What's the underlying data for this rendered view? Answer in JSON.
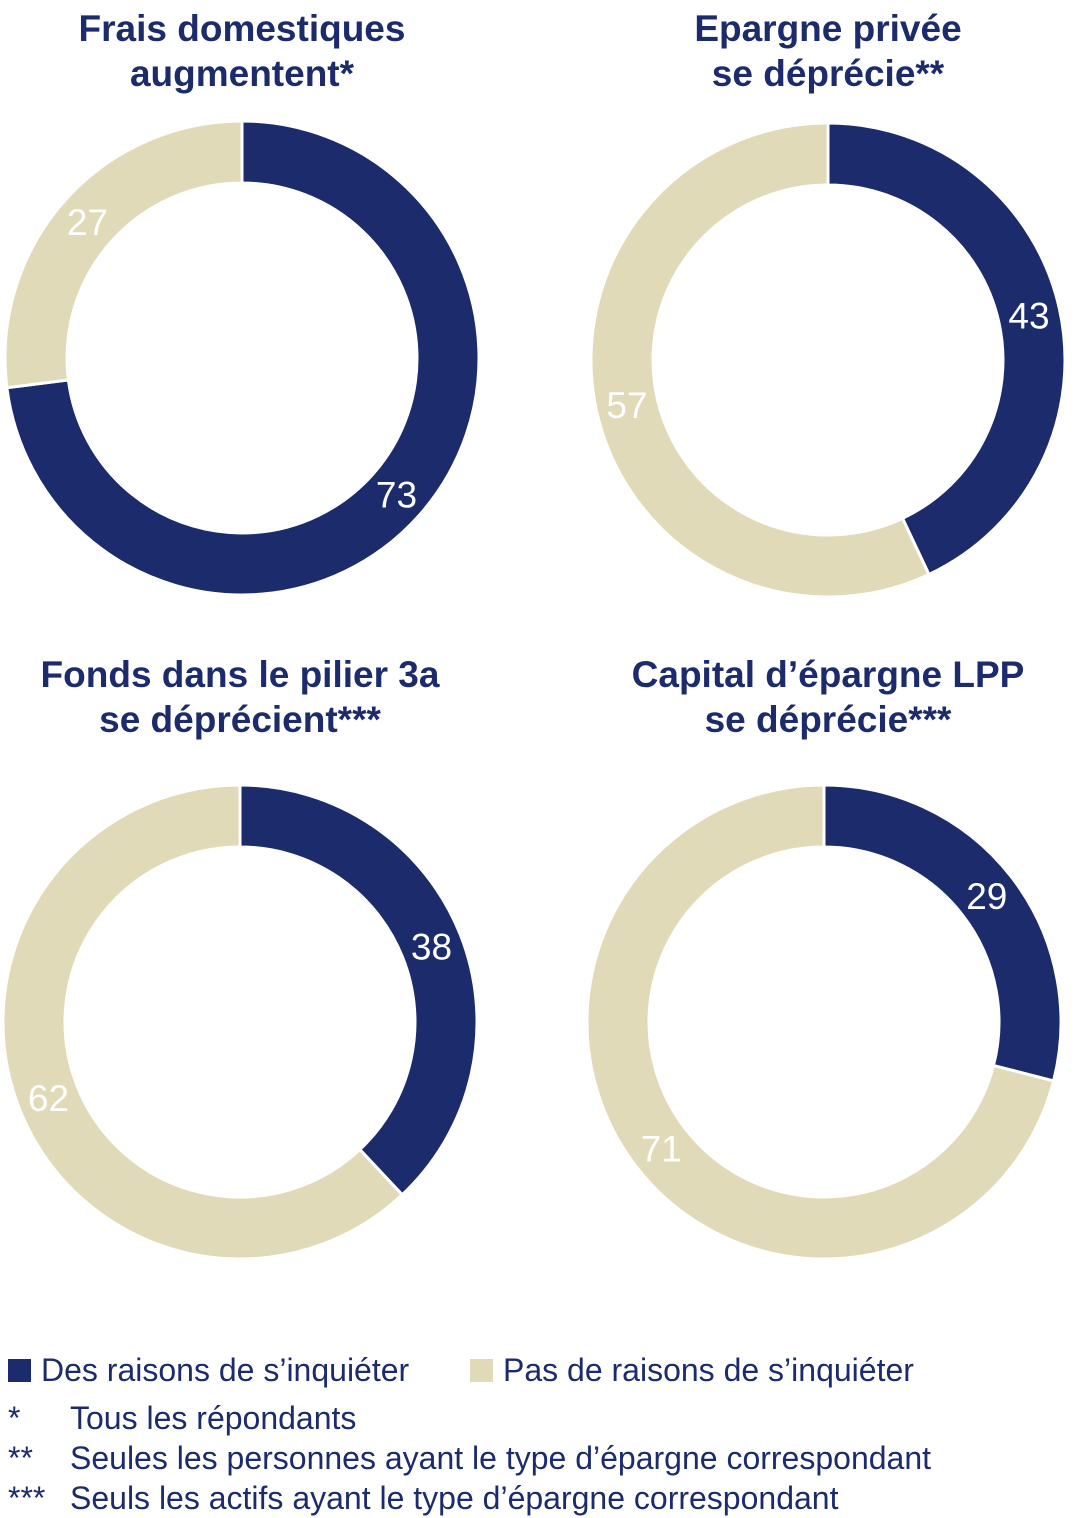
{
  "colors": {
    "navy": "#1B2B6B",
    "beige": "#E0DAB8",
    "slice_label": "#ffffff",
    "text": "#1B2B6B",
    "background": "#ffffff"
  },
  "chart_data": [
    {
      "type": "pie",
      "subtype": "donut",
      "title": "Frais domestiques augmentent*",
      "title_lines": [
        "Frais domestiques",
        "augmentent*"
      ],
      "labels": [
        "Des raisons de s’inquiéter",
        "Pas de raisons de s’inquiéter"
      ],
      "values": [
        73,
        27
      ],
      "colors": [
        "#1B2B6B",
        "#E0DAB8"
      ],
      "start_angle_deg": 0,
      "direction": "clockwise",
      "data_labels": "white numbers at slice mid-angle"
    },
    {
      "type": "pie",
      "subtype": "donut",
      "title": "Epargne privée se déprécie**",
      "title_lines": [
        "Epargne privée",
        "se déprécie**"
      ],
      "labels": [
        "Des raisons de s’inquiéter",
        "Pas de raisons de s’inquiéter"
      ],
      "values": [
        43,
        57
      ],
      "colors": [
        "#1B2B6B",
        "#E0DAB8"
      ],
      "start_angle_deg": 0,
      "direction": "clockwise",
      "data_labels": "white numbers at slice mid-angle"
    },
    {
      "type": "pie",
      "subtype": "donut",
      "title": "Fonds dans le pilier 3a se déprécient***",
      "title_lines": [
        "Fonds dans le pilier 3a",
        "se déprécient***"
      ],
      "labels": [
        "Des raisons de s’inquiéter",
        "Pas de raisons de s’inquiéter"
      ],
      "values": [
        38,
        62
      ],
      "colors": [
        "#1B2B6B",
        "#E0DAB8"
      ],
      "start_angle_deg": 0,
      "direction": "clockwise",
      "data_labels": "white numbers at slice mid-angle"
    },
    {
      "type": "pie",
      "subtype": "donut",
      "title": "Capital d’épargne LPP se déprécie***",
      "title_lines": [
        "Capital d’épargne LPP",
        "se déprécie***"
      ],
      "labels": [
        "Des raisons de s’inquiéter",
        "Pas de raisons de s’inquiéter"
      ],
      "values": [
        29,
        71
      ],
      "colors": [
        "#1B2B6B",
        "#E0DAB8"
      ],
      "start_angle_deg": 0,
      "direction": "clockwise",
      "data_labels": "white numbers at slice mid-angle"
    }
  ],
  "legend": {
    "items": [
      {
        "label": "Des raisons de s’inquiéter",
        "color": "#1B2B6B"
      },
      {
        "label": "Pas de raisons de s’inquiéter",
        "color": "#E0DAB8"
      }
    ]
  },
  "footnotes": [
    {
      "marker": "*",
      "text": "Tous les répondants"
    },
    {
      "marker": "**",
      "text": "Seules les personnes ayant le type d’épargne correspondant"
    },
    {
      "marker": "***",
      "text": "Seuls les actifs ayant le type d’épargne correspondant"
    }
  ]
}
